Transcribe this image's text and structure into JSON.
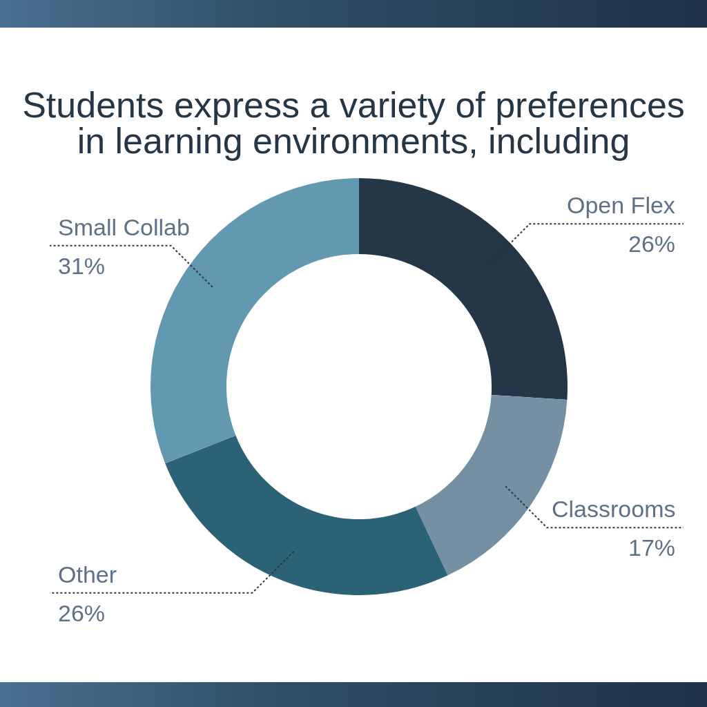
{
  "chart_data": {
    "type": "donut",
    "title": "Students express a variety of preferences in learning environments, including",
    "categories": [
      "Open Flex",
      "Classrooms",
      "Other",
      "Small Collab"
    ],
    "values": [
      26,
      17,
      26,
      31
    ],
    "colors": [
      "#253746",
      "#7590a3",
      "#2b6275",
      "#6399b0"
    ],
    "value_labels": [
      "26%",
      "17%",
      "26%",
      "31%"
    ]
  }
}
